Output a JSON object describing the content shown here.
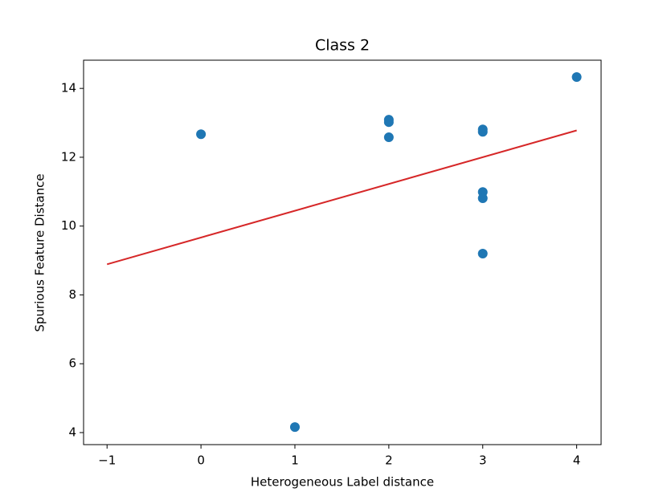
{
  "chart_data": {
    "type": "scatter",
    "title": "Class 2",
    "x_label": "Heterogeneous Label distance",
    "y_label": "Spurious Feature Distance",
    "x": [
      0,
      1,
      2,
      2,
      2,
      3,
      3,
      3,
      3,
      3,
      4
    ],
    "values": [
      12.67,
      4.16,
      13.09,
      13.02,
      12.58,
      12.81,
      12.74,
      10.99,
      10.81,
      9.2,
      14.33
    ],
    "color": "#1f77b4",
    "fit": {
      "x": [
        -1,
        4
      ],
      "values": [
        8.89,
        12.78
      ],
      "color": "#d62728"
    },
    "xlim": [
      -1.25,
      4.26
    ],
    "ylim": [
      3.65,
      14.82
    ],
    "xticks": [
      {
        "value": -1,
        "label": "−1"
      },
      0,
      1,
      2,
      3,
      4
    ],
    "yticks": [
      4,
      6,
      8,
      10,
      12,
      14
    ]
  }
}
